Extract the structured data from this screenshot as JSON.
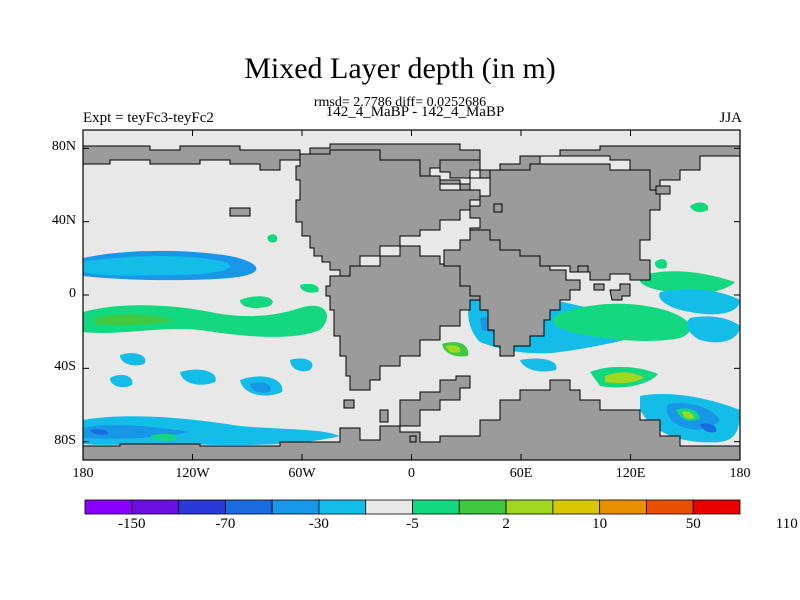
{
  "title": "Mixed Layer depth (in m)",
  "stats": "rmsd= 2.7786 diff= 0.0252686",
  "left_label": "Expt = teyFc3-teyFc2",
  "center_label": "142_4_MaBP - 142_4_MaBP",
  "right_label": "JJA",
  "colors": {
    "land": "#9b9b9b",
    "ocean_neutral": "#e8e8e8",
    "levels": [
      "#8a00ff",
      "#6a0fe0",
      "#2a3ad8",
      "#1a6be0",
      "#1896e8",
      "#14bde8",
      "#e8e8e8",
      "#14d880",
      "#40c840",
      "#a0d820",
      "#d8c800",
      "#e89000",
      "#e85000",
      "#e80000"
    ]
  },
  "map": {
    "projection": "cylindrical-equidistant",
    "lon_range": [
      -180,
      180
    ],
    "lat_range": [
      -90,
      90
    ],
    "x_ticks": [
      "180",
      "120W",
      "60W",
      "0",
      "60E",
      "120E",
      "180"
    ],
    "x_tick_lons": [
      -180,
      -120,
      -60,
      0,
      60,
      120,
      180
    ],
    "y_ticks": [
      "80N",
      "40N",
      "0",
      "40S",
      "80S"
    ],
    "y_tick_lats": [
      80,
      40,
      0,
      -40,
      -80
    ]
  },
  "colorbar": {
    "labels": [
      "-150",
      "-70",
      "-30",
      "-5",
      "2",
      "10",
      "50",
      "110"
    ]
  }
}
